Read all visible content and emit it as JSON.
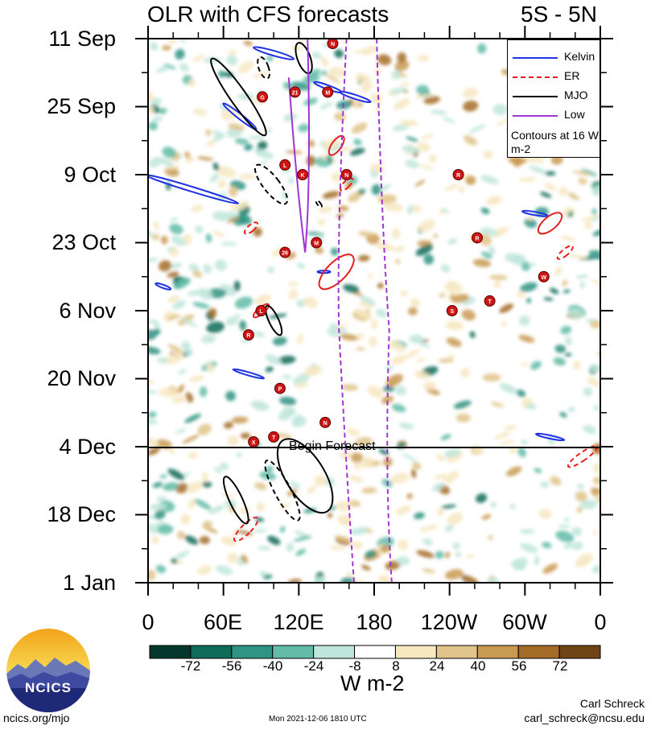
{
  "chart_data": {
    "type": "heatmap",
    "title": "OLR with CFS forecasts",
    "region": "5S - 5N",
    "x_axis": {
      "ticks": [
        "0",
        "60E",
        "120E",
        "180",
        "120W",
        "60W",
        "0"
      ],
      "range_deg_east": [
        0,
        360
      ]
    },
    "y_axis": {
      "ticks": [
        "11 Sep",
        "25 Sep",
        "9 Oct",
        "23 Oct",
        "6 Nov",
        "20 Nov",
        "4 Dec",
        "18 Dec",
        "1 Jan"
      ],
      "range_days": [
        0,
        112
      ]
    },
    "colorbar": {
      "units": "W m-2",
      "levels": [
        "-72",
        "-56",
        "-40",
        "-24",
        "-8",
        "8",
        "24",
        "40",
        "56",
        "72"
      ],
      "colors": [
        "#05382d",
        "#0f6b5a",
        "#2f9483",
        "#62bca8",
        "#bfe6db",
        "#ffffff",
        "#f7e8c2",
        "#e0c489",
        "#c99a52",
        "#a46c26",
        "#6f4516"
      ]
    },
    "legend": {
      "items": [
        {
          "label": "Kelvin",
          "color": "#1f32e6",
          "dash": "solid"
        },
        {
          "label": "ER",
          "color": "#e61e1e",
          "dash": "dash"
        },
        {
          "label": "MJO",
          "color": "#000000",
          "dash": "solid"
        },
        {
          "label": "Low",
          "color": "#a035d2",
          "dash": "solid"
        }
      ],
      "note": "Contours at 16 W m-2"
    },
    "forecast_line": {
      "day": 84,
      "label": "Begin Forecast"
    },
    "storm_markers": [
      {
        "letter": "N",
        "lon": 147,
        "day": 1
      },
      {
        "letter": "21",
        "lon": 117,
        "day": 11
      },
      {
        "letter": "M",
        "lon": 143,
        "day": 11
      },
      {
        "letter": "G",
        "lon": 91,
        "day": 12
      },
      {
        "letter": "L",
        "lon": 109,
        "day": 26
      },
      {
        "letter": "K",
        "lon": 123,
        "day": 28
      },
      {
        "letter": "N",
        "lon": 158,
        "day": 28
      },
      {
        "letter": "R",
        "lon": 247,
        "day": 28
      },
      {
        "letter": "R",
        "lon": 262,
        "day": 41
      },
      {
        "letter": "M",
        "lon": 134,
        "day": 42
      },
      {
        "letter": "26",
        "lon": 109,
        "day": 44
      },
      {
        "letter": "W",
        "lon": 315,
        "day": 49
      },
      {
        "letter": "T",
        "lon": 272,
        "day": 54
      },
      {
        "letter": "S",
        "lon": 242,
        "day": 56
      },
      {
        "letter": "L",
        "lon": 90,
        "day": 56
      },
      {
        "letter": "R",
        "lon": 80,
        "day": 61
      },
      {
        "letter": "P",
        "lon": 105,
        "day": 72
      },
      {
        "letter": "N",
        "lon": 141,
        "day": 79
      },
      {
        "letter": "T",
        "lon": 100,
        "day": 82
      },
      {
        "letter": "X",
        "lon": 84,
        "day": 83
      }
    ]
  },
  "footer": {
    "logo_text": "NCICS",
    "site": "ncics.org/mjo",
    "timestamp": "Mon 2021-12-06 1810 UTC",
    "author": "Carl Schreck",
    "email": "carl_schreck@ncsu.edu"
  }
}
